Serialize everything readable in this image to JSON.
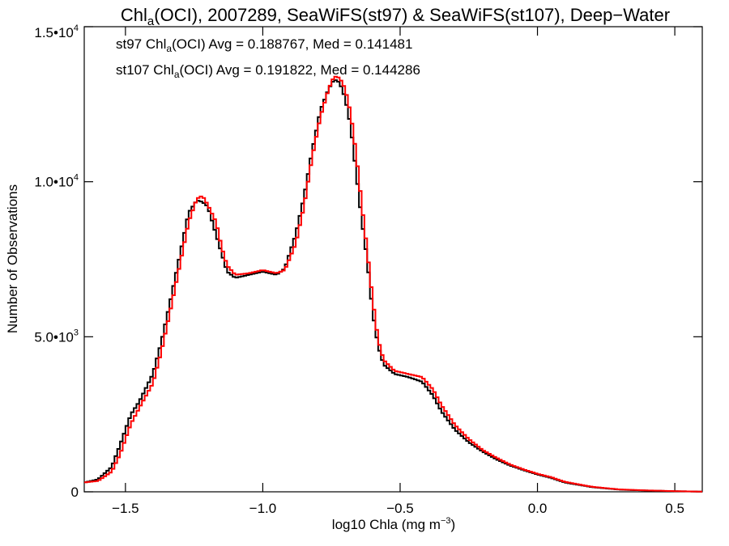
{
  "chart_data": {
    "type": "line",
    "title": {
      "prefix": "Chl",
      "sub": "a",
      "suffix": "(OCI), 2007289, SeaWiFS(st97) & SeaWiFS(st107), Deep−Water"
    },
    "xlabel": {
      "main": "log10 Chla (mg m",
      "sup": "−3",
      "end": ")"
    },
    "ylabel": "Number of Observations",
    "xlim": [
      -1.65,
      0.6
    ],
    "ylim": [
      0,
      15000
    ],
    "x_ticks": [
      {
        "value": -1.5,
        "label": "−1.5"
      },
      {
        "value": -1.0,
        "label": "−1.0"
      },
      {
        "value": -0.5,
        "label": "−0.5"
      },
      {
        "value": 0.0,
        "label": "0.0"
      },
      {
        "value": 0.5,
        "label": "0.5"
      }
    ],
    "y_ticks": [
      {
        "value": 0,
        "base": "0",
        "exp": ""
      },
      {
        "value": 5000,
        "base": "5.0•10",
        "exp": "3"
      },
      {
        "value": 10000,
        "base": "1.0•10",
        "exp": "4"
      },
      {
        "value": 15000,
        "base": "1.5•10",
        "exp": "4"
      }
    ],
    "legend": [
      {
        "prefix": "st97 Chl",
        "sub": "a",
        "suffix": "(OCI) Avg = 0.188767, Med = 0.141481",
        "color": "#000000"
      },
      {
        "prefix": "st107 Chl",
        "sub": "a",
        "suffix": "(OCI) Avg = 0.191822, Med = 0.144286",
        "color": "#ff0000"
      }
    ],
    "series": [
      {
        "name": "st97",
        "color": "#000000",
        "points": [
          [
            -1.65,
            300
          ],
          [
            -1.6,
            400
          ],
          [
            -1.55,
            800
          ],
          [
            -1.52,
            1500
          ],
          [
            -1.48,
            2500
          ],
          [
            -1.45,
            2900
          ],
          [
            -1.4,
            3800
          ],
          [
            -1.37,
            4800
          ],
          [
            -1.34,
            6000
          ],
          [
            -1.3,
            7700
          ],
          [
            -1.27,
            9000
          ],
          [
            -1.24,
            9400
          ],
          [
            -1.22,
            9350
          ],
          [
            -1.2,
            9200
          ],
          [
            -1.17,
            8300
          ],
          [
            -1.15,
            7700
          ],
          [
            -1.13,
            7100
          ],
          [
            -1.1,
            6900
          ],
          [
            -1.05,
            7000
          ],
          [
            -1.0,
            7100
          ],
          [
            -0.95,
            7000
          ],
          [
            -0.92,
            7200
          ],
          [
            -0.88,
            8300
          ],
          [
            -0.85,
            9500
          ],
          [
            -0.82,
            11000
          ],
          [
            -0.79,
            12300
          ],
          [
            -0.76,
            13000
          ],
          [
            -0.74,
            13300
          ],
          [
            -0.72,
            13200
          ],
          [
            -0.7,
            12700
          ],
          [
            -0.68,
            11800
          ],
          [
            -0.66,
            10300
          ],
          [
            -0.64,
            8800
          ],
          [
            -0.62,
            7500
          ],
          [
            -0.6,
            5800
          ],
          [
            -0.58,
            4700
          ],
          [
            -0.56,
            4100
          ],
          [
            -0.52,
            3800
          ],
          [
            -0.47,
            3700
          ],
          [
            -0.42,
            3550
          ],
          [
            -0.38,
            3100
          ],
          [
            -0.35,
            2600
          ],
          [
            -0.3,
            2000
          ],
          [
            -0.25,
            1600
          ],
          [
            -0.2,
            1300
          ],
          [
            -0.15,
            1050
          ],
          [
            -0.1,
            850
          ],
          [
            -0.05,
            700
          ],
          [
            0.0,
            560
          ],
          [
            0.05,
            450
          ],
          [
            0.1,
            300
          ],
          [
            0.2,
            150
          ],
          [
            0.3,
            70
          ],
          [
            0.4,
            40
          ],
          [
            0.5,
            20
          ],
          [
            0.6,
            5
          ]
        ]
      },
      {
        "name": "st107",
        "color": "#ff0000",
        "points": [
          [
            -1.65,
            300
          ],
          [
            -1.6,
            350
          ],
          [
            -1.55,
            650
          ],
          [
            -1.52,
            1200
          ],
          [
            -1.48,
            2200
          ],
          [
            -1.45,
            2700
          ],
          [
            -1.4,
            3500
          ],
          [
            -1.37,
            4500
          ],
          [
            -1.34,
            5700
          ],
          [
            -1.3,
            7400
          ],
          [
            -1.27,
            8700
          ],
          [
            -1.24,
            9450
          ],
          [
            -1.22,
            9550
          ],
          [
            -1.2,
            9250
          ],
          [
            -1.17,
            8700
          ],
          [
            -1.15,
            7900
          ],
          [
            -1.13,
            7300
          ],
          [
            -1.1,
            7000
          ],
          [
            -1.05,
            7050
          ],
          [
            -1.0,
            7150
          ],
          [
            -0.95,
            7050
          ],
          [
            -0.92,
            7150
          ],
          [
            -0.88,
            8000
          ],
          [
            -0.85,
            9200
          ],
          [
            -0.82,
            10800
          ],
          [
            -0.79,
            12100
          ],
          [
            -0.76,
            13000
          ],
          [
            -0.74,
            13400
          ],
          [
            -0.72,
            13350
          ],
          [
            -0.7,
            13000
          ],
          [
            -0.68,
            12200
          ],
          [
            -0.66,
            10900
          ],
          [
            -0.64,
            9300
          ],
          [
            -0.62,
            7800
          ],
          [
            -0.6,
            6200
          ],
          [
            -0.58,
            4900
          ],
          [
            -0.56,
            4250
          ],
          [
            -0.52,
            3900
          ],
          [
            -0.47,
            3800
          ],
          [
            -0.42,
            3700
          ],
          [
            -0.38,
            3300
          ],
          [
            -0.35,
            2800
          ],
          [
            -0.3,
            2150
          ],
          [
            -0.25,
            1700
          ],
          [
            -0.2,
            1350
          ],
          [
            -0.15,
            1100
          ],
          [
            -0.1,
            880
          ],
          [
            -0.05,
            720
          ],
          [
            0.0,
            580
          ],
          [
            0.05,
            470
          ],
          [
            0.1,
            320
          ],
          [
            0.2,
            160
          ],
          [
            0.3,
            75
          ],
          [
            0.4,
            45
          ],
          [
            0.5,
            22
          ],
          [
            0.6,
            5
          ]
        ]
      }
    ],
    "grid": false,
    "legend_position": "top-left"
  }
}
